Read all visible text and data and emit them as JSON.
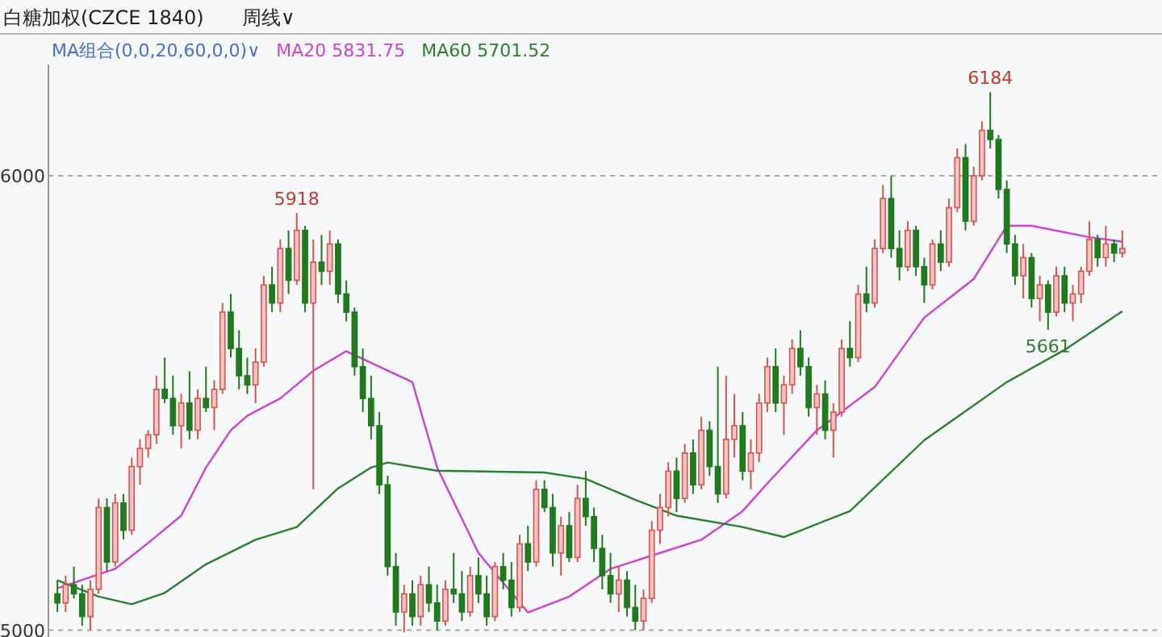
{
  "chart_data": {
    "type": "candlestick",
    "title": "白糖加权(CZCE 1840)",
    "subtitle": "周线∨",
    "legend_title": "MA组合(0,0,20,60,0,0)∨",
    "legend": "top left",
    "grid": "y",
    "tick_labels": "y",
    "ylim": [
      4985,
      6245
    ],
    "yticks": [
      5000,
      6000
    ],
    "categories": [
      null,
      null,
      null,
      null,
      null,
      null,
      null,
      null,
      null,
      null,
      null,
      null,
      null,
      null,
      null,
      null,
      null,
      null,
      null,
      null,
      null,
      null,
      null,
      null,
      null,
      null,
      null,
      null,
      null,
      null,
      null,
      null,
      null,
      null,
      null,
      null,
      null,
      null,
      null,
      null,
      null,
      null,
      null,
      null,
      null,
      null,
      null,
      null,
      null,
      null,
      null,
      null,
      null,
      null,
      null,
      null,
      null,
      null,
      null,
      null,
      null,
      null,
      null,
      null,
      null,
      null,
      null,
      null,
      null,
      null,
      null,
      null,
      null,
      null,
      null,
      null,
      null,
      null,
      null,
      null,
      null,
      null,
      null,
      null,
      null,
      null,
      null,
      null,
      null,
      null,
      null,
      null,
      null,
      null,
      null,
      null,
      null,
      null,
      null,
      null,
      null,
      null,
      null,
      null,
      null,
      null,
      null,
      null,
      null,
      null,
      null,
      null,
      null,
      null,
      null,
      null,
      null,
      null,
      null,
      null,
      null,
      null,
      null,
      null,
      null,
      null,
      null,
      null,
      null,
      null
    ],
    "ohlc": [
      [
        5080,
        5110,
        5040,
        5060
      ],
      [
        5060,
        5120,
        5040,
        5100
      ],
      [
        5100,
        5140,
        5070,
        5080
      ],
      [
        5080,
        5100,
        5010,
        5030
      ],
      [
        5030,
        5110,
        5000,
        5090
      ],
      [
        5090,
        5290,
        5080,
        5270
      ],
      [
        5270,
        5290,
        5130,
        5150
      ],
      [
        5150,
        5300,
        5140,
        5280
      ],
      [
        5280,
        5300,
        5200,
        5220
      ],
      [
        5220,
        5380,
        5210,
        5360
      ],
      [
        5360,
        5420,
        5320,
        5400
      ],
      [
        5400,
        5440,
        5380,
        5430
      ],
      [
        5430,
        5560,
        5410,
        5530
      ],
      [
        5530,
        5600,
        5500,
        5510
      ],
      [
        5510,
        5560,
        5430,
        5450
      ],
      [
        5450,
        5520,
        5400,
        5500
      ],
      [
        5500,
        5570,
        5420,
        5440
      ],
      [
        5440,
        5530,
        5420,
        5510
      ],
      [
        5510,
        5580,
        5480,
        5490
      ],
      [
        5490,
        5550,
        5440,
        5530
      ],
      [
        5530,
        5720,
        5520,
        5700
      ],
      [
        5700,
        5740,
        5600,
        5620
      ],
      [
        5620,
        5660,
        5530,
        5560
      ],
      [
        5560,
        5600,
        5520,
        5540
      ],
      [
        5540,
        5620,
        5500,
        5590
      ],
      [
        5590,
        5780,
        5580,
        5760
      ],
      [
        5760,
        5800,
        5700,
        5720
      ],
      [
        5720,
        5860,
        5700,
        5840
      ],
      [
        5840,
        5880,
        5740,
        5770
      ],
      [
        5770,
        5918,
        5760,
        5880
      ],
      [
        5880,
        5890,
        5700,
        5720
      ],
      [
        5720,
        5860,
        5310,
        5810
      ],
      [
        5810,
        5870,
        5760,
        5790
      ],
      [
        5790,
        5880,
        5760,
        5850
      ],
      [
        5850,
        5860,
        5720,
        5740
      ],
      [
        5740,
        5770,
        5680,
        5700
      ],
      [
        5700,
        5710,
        5560,
        5580
      ],
      [
        5580,
        5620,
        5480,
        5510
      ],
      [
        5510,
        5560,
        5420,
        5450
      ],
      [
        5450,
        5480,
        5300,
        5320
      ],
      [
        5320,
        5340,
        5120,
        5140
      ],
      [
        5140,
        5170,
        5010,
        5040
      ],
      [
        5040,
        5100,
        4995,
        5080
      ],
      [
        5080,
        5110,
        5010,
        5030
      ],
      [
        5030,
        5120,
        5010,
        5100
      ],
      [
        5100,
        5140,
        5040,
        5060
      ],
      [
        5060,
        5100,
        5000,
        5020
      ],
      [
        5020,
        5110,
        5010,
        5090
      ],
      [
        5090,
        5170,
        5060,
        5080
      ],
      [
        5080,
        5130,
        5020,
        5040
      ],
      [
        5040,
        5140,
        5030,
        5120
      ],
      [
        5120,
        5160,
        5060,
        5080
      ],
      [
        5080,
        5120,
        5010,
        5030
      ],
      [
        5030,
        5150,
        5020,
        5140
      ],
      [
        5140,
        5170,
        5090,
        5110
      ],
      [
        5110,
        5150,
        5030,
        5050
      ],
      [
        5050,
        5210,
        5040,
        5190
      ],
      [
        5190,
        5230,
        5130,
        5150
      ],
      [
        5150,
        5330,
        5140,
        5310
      ],
      [
        5310,
        5330,
        5260,
        5270
      ],
      [
        5270,
        5300,
        5140,
        5170
      ],
      [
        5170,
        5250,
        5120,
        5230
      ],
      [
        5230,
        5260,
        5150,
        5160
      ],
      [
        5160,
        5320,
        5150,
        5290
      ],
      [
        5290,
        5350,
        5230,
        5250
      ],
      [
        5250,
        5270,
        5150,
        5180
      ],
      [
        5180,
        5210,
        5090,
        5120
      ],
      [
        5120,
        5170,
        5060,
        5080
      ],
      [
        5080,
        5140,
        5040,
        5110
      ],
      [
        5110,
        5130,
        5030,
        5050
      ],
      [
        5050,
        5100,
        5000,
        5020
      ],
      [
        5020,
        5090,
        5000,
        5070
      ],
      [
        5070,
        5240,
        5060,
        5220
      ],
      [
        5220,
        5300,
        5190,
        5270
      ],
      [
        5270,
        5370,
        5250,
        5350
      ],
      [
        5350,
        5380,
        5260,
        5290
      ],
      [
        5290,
        5410,
        5280,
        5390
      ],
      [
        5390,
        5420,
        5300,
        5320
      ],
      [
        5320,
        5470,
        5310,
        5440
      ],
      [
        5440,
        5460,
        5340,
        5360
      ],
      [
        5360,
        5580,
        5280,
        5300
      ],
      [
        5300,
        5560,
        5290,
        5420
      ],
      [
        5420,
        5520,
        5380,
        5450
      ],
      [
        5450,
        5480,
        5330,
        5350
      ],
      [
        5350,
        5420,
        5310,
        5390
      ],
      [
        5390,
        5520,
        5370,
        5500
      ],
      [
        5500,
        5600,
        5480,
        5580
      ],
      [
        5580,
        5620,
        5480,
        5500
      ],
      [
        5500,
        5560,
        5430,
        5540
      ],
      [
        5540,
        5640,
        5520,
        5620
      ],
      [
        5620,
        5660,
        5560,
        5580
      ],
      [
        5580,
        5600,
        5470,
        5490
      ],
      [
        5490,
        5540,
        5430,
        5520
      ],
      [
        5520,
        5550,
        5420,
        5440
      ],
      [
        5440,
        5500,
        5380,
        5480
      ],
      [
        5480,
        5640,
        5470,
        5620
      ],
      [
        5620,
        5680,
        5580,
        5600
      ],
      [
        5600,
        5760,
        5590,
        5740
      ],
      [
        5740,
        5800,
        5700,
        5720
      ],
      [
        5720,
        5860,
        5710,
        5840
      ],
      [
        5840,
        5980,
        5830,
        5950
      ],
      [
        5950,
        6000,
        5820,
        5840
      ],
      [
        5840,
        5880,
        5770,
        5800
      ],
      [
        5800,
        5900,
        5790,
        5880
      ],
      [
        5880,
        5890,
        5780,
        5800
      ],
      [
        5800,
        5820,
        5720,
        5760
      ],
      [
        5760,
        5860,
        5750,
        5850
      ],
      [
        5850,
        5880,
        5790,
        5810
      ],
      [
        5810,
        5950,
        5800,
        5930
      ],
      [
        5930,
        6060,
        5920,
        6040
      ],
      [
        6040,
        6070,
        5880,
        5900
      ],
      [
        5900,
        6020,
        5890,
        6000
      ],
      [
        6000,
        6120,
        5990,
        6100
      ],
      [
        6100,
        6184,
        6060,
        6080
      ],
      [
        6080,
        6090,
        5950,
        5970
      ],
      [
        5970,
        5990,
        5830,
        5850
      ],
      [
        5850,
        5870,
        5760,
        5780
      ],
      [
        5780,
        5850,
        5730,
        5820
      ],
      [
        5820,
        5830,
        5710,
        5730
      ],
      [
        5730,
        5780,
        5680,
        5760
      ],
      [
        5760,
        5770,
        5661,
        5700
      ],
      [
        5700,
        5800,
        5690,
        5780
      ],
      [
        5780,
        5800,
        5700,
        5720
      ],
      [
        5720,
        5760,
        5680,
        5740
      ],
      [
        5740,
        5800,
        5720,
        5790
      ],
      [
        5790,
        5900,
        5780,
        5860
      ],
      [
        5860,
        5870,
        5800,
        5820
      ],
      [
        5820,
        5890,
        5800,
        5850
      ],
      [
        5850,
        5860,
        5810,
        5830
      ],
      [
        5830,
        5880,
        5820,
        5840
      ]
    ],
    "series": [
      {
        "type": "line",
        "name": "MA20 5831.75",
        "color": "#cc44cc",
        "values": [
          5092,
          null,
          null,
          null,
          null,
          null,
          null,
          5135,
          null,
          null,
          null,
          5192,
          null,
          null,
          null,
          5252,
          null,
          null,
          5358,
          null,
          null,
          5440,
          null,
          5472,
          null,
          null,
          null,
          5510,
          null,
          null,
          null,
          5571,
          null,
          null,
          null,
          5614,
          null,
          null,
          null,
          null,
          null,
          null,
          null,
          5546,
          null,
          null,
          5358,
          null,
          null,
          null,
          null,
          5170,
          null,
          null,
          null,
          null,
          null,
          5039,
          null,
          null,
          null,
          null,
          5074,
          null,
          null,
          null,
          null,
          5135,
          null,
          null,
          null,
          null,
          null,
          5170,
          null,
          null,
          null,
          null,
          5199,
          null,
          null,
          null,
          null,
          5262,
          null,
          null,
          5323,
          null,
          null,
          null,
          null,
          null,
          5440,
          null,
          null,
          null,
          null,
          null,
          null,
          5535,
          null,
          null,
          null,
          null,
          null,
          5688,
          null,
          null,
          null,
          null,
          null,
          5773,
          null,
          null,
          null,
          5890,
          null,
          null,
          5890,
          null,
          null,
          null,
          null,
          null,
          null,
          5865,
          null,
          null,
          null,
          5855
        ]
      },
      {
        "type": "line",
        "name": "MA60 5701.52",
        "color": "#2e7d32",
        "values": [
          5110,
          null,
          null,
          null,
          null,
          5074,
          null,
          null,
          null,
          5057,
          null,
          null,
          null,
          5082,
          null,
          null,
          null,
          null,
          5145,
          null,
          null,
          null,
          null,
          null,
          5199,
          null,
          null,
          null,
          null,
          5227,
          null,
          null,
          null,
          null,
          5312,
          null,
          null,
          null,
          5358,
          null,
          5369,
          null,
          null,
          null,
          null,
          null,
          5351,
          null,
          null,
          null,
          null,
          null,
          null,
          null,
          null,
          null,
          null,
          null,
          null,
          5347,
          null,
          null,
          null,
          null,
          5333,
          null,
          null,
          null,
          null,
          null,
          5287,
          null,
          null,
          null,
          null,
          5252,
          null,
          null,
          null,
          null,
          null,
          null,
          null,
          5227,
          null,
          null,
          null,
          null,
          5205,
          null,
          null,
          null,
          null,
          null,
          null,
          null,
          5262,
          null,
          null,
          null,
          null,
          null,
          null,
          null,
          null,
          5418,
          null,
          null,
          null,
          null,
          null,
          null,
          null,
          null,
          null,
          5546,
          null,
          null,
          null,
          null,
          null,
          null,
          5617,
          null,
          null,
          null,
          null,
          null,
          null,
          5702
        ]
      }
    ],
    "annotations": [
      {
        "text": "5918",
        "y": 5918
      },
      {
        "text": "6184",
        "y": 6184
      },
      {
        "text": "5661",
        "y": 5661
      }
    ]
  }
}
